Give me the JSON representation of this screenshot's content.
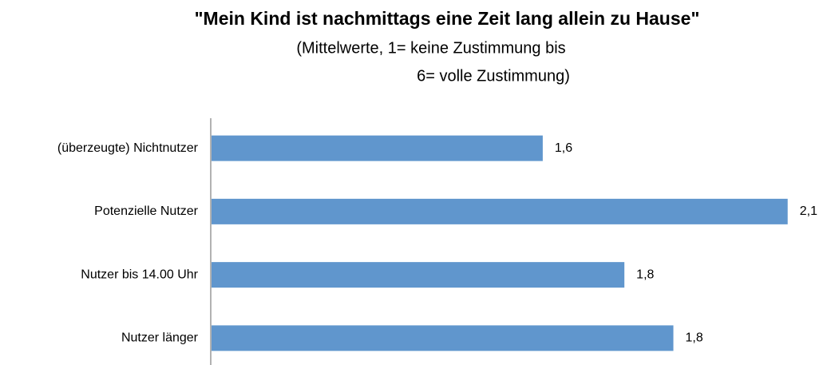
{
  "chart_data": {
    "type": "bar",
    "orientation": "horizontal",
    "title": "\"Mein Kind ist nachmittags eine Zeit lang allein zu Hause\"",
    "subtitle": [
      "(Mittelwerte, 1= keine Zustimmung bis",
      "6= volle Zustimmung)"
    ],
    "categories": [
      "(überzeugte) Nichtnutzer",
      "Potenzielle Nutzer",
      "Nutzer bis 14.00 Uhr",
      "Nutzer länger"
    ],
    "values": [
      1.61,
      2.06,
      1.76,
      1.85
    ],
    "value_labels": [
      "1,6",
      "2,1",
      "1,8",
      "1,8"
    ],
    "color": "#6096cd",
    "xlim": [
      1,
      2.1
    ]
  }
}
